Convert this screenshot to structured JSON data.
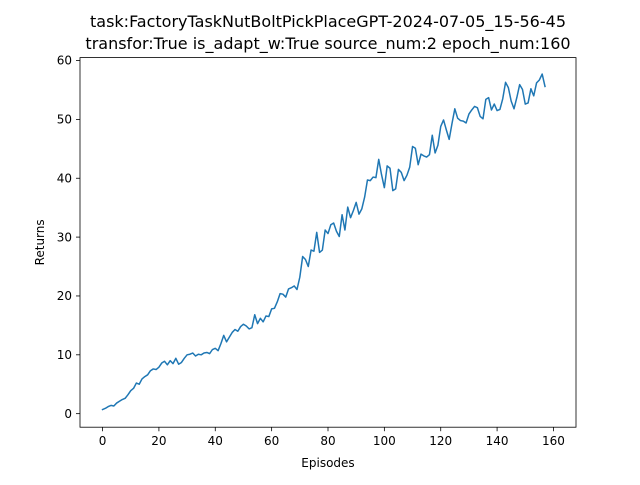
{
  "chart_data": {
    "type": "line",
    "title_line1": "task:FactoryTaskNutBoltPickPlaceGPT-2024-07-05_15-56-45",
    "title_line2": "transfor:True  is_adapt_w:True source_num:2   epoch_num:160",
    "xlabel": "Episodes",
    "ylabel": "Returns",
    "xlim": [
      -8,
      168
    ],
    "ylim": [
      -2.3,
      60.5
    ],
    "xticks": [
      0,
      20,
      40,
      60,
      80,
      100,
      120,
      140,
      160
    ],
    "yticks": [
      0,
      10,
      20,
      30,
      40,
      50,
      60
    ],
    "line_color": "#1f77b4",
    "grid": false,
    "series": [
      {
        "values": [
          0.7,
          0.9,
          1.2,
          1.4,
          1.3,
          1.8,
          2.1,
          2.4,
          2.6,
          3.2,
          3.9,
          4.3,
          5.2,
          5.0,
          5.9,
          6.3,
          6.6,
          7.3,
          7.6,
          7.5,
          7.9,
          8.6,
          8.9,
          8.3,
          9.0,
          8.5,
          9.4,
          8.4,
          8.7,
          9.4,
          10.0,
          10.1,
          10.3,
          9.8,
          10.1,
          10.0,
          10.3,
          10.4,
          10.2,
          10.9,
          11.1,
          10.7,
          11.9,
          13.3,
          12.2,
          13.0,
          13.8,
          14.3,
          14.0,
          14.8,
          15.2,
          14.9,
          14.4,
          14.6,
          16.8,
          15.3,
          16.2,
          15.6,
          16.6,
          16.5,
          17.8,
          17.9,
          19.0,
          20.4,
          20.3,
          19.8,
          21.2,
          21.4,
          21.7,
          21.1,
          23.2,
          26.7,
          26.2,
          25.0,
          27.8,
          27.6,
          30.8,
          27.4,
          27.8,
          31.2,
          30.6,
          32.1,
          32.4,
          31.0,
          30.1,
          33.8,
          31.2,
          35.1,
          33.3,
          34.5,
          35.9,
          33.9,
          34.8,
          36.8,
          39.7,
          39.6,
          40.2,
          40.1,
          43.2,
          40.6,
          38.4,
          42.1,
          41.7,
          37.9,
          38.2,
          41.5,
          41.0,
          39.6,
          40.5,
          41.9,
          45.4,
          45.1,
          42.3,
          44.1,
          43.8,
          43.6,
          44.0,
          47.3,
          44.3,
          45.6,
          48.8,
          49.9,
          48.2,
          46.6,
          49.3,
          51.8,
          50.2,
          49.8,
          49.7,
          49.4,
          50.9,
          51.6,
          52.2,
          52.0,
          50.5,
          50.1,
          53.4,
          53.7,
          51.6,
          52.6,
          51.5,
          51.7,
          53.5,
          56.3,
          55.4,
          53.1,
          51.8,
          53.7,
          55.9,
          55.1,
          52.6,
          52.8,
          55.2,
          54.0,
          56.2,
          56.7,
          57.7,
          55.6
        ]
      }
    ]
  }
}
